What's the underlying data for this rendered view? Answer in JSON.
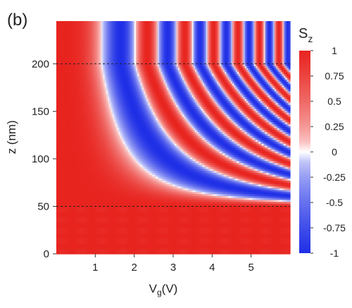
{
  "panel_label": "(b)",
  "colors": {
    "positive": "#e8241f",
    "zero": "#ffffff",
    "negative": "#1f2fe6"
  },
  "chart_data": {
    "type": "heatmap",
    "title": "",
    "xlabel": "V_g(V)",
    "ylabel": "z (nm)",
    "x_range": [
      0,
      6
    ],
    "y_range": [
      0,
      245
    ],
    "x_ticks": [
      1,
      2,
      3,
      4,
      5
    ],
    "y_ticks": [
      0,
      50,
      100,
      150,
      200
    ],
    "dashed_lines_z": [
      50,
      200
    ],
    "colorbar": {
      "label_main": "S",
      "label_sub": "z",
      "range": [
        -1,
        1
      ],
      "ticks": [
        "1",
        "0.75",
        "0.5",
        "0.25",
        "0",
        "-0.25",
        "-0.5",
        "-0.75",
        "-1"
      ],
      "tick_values": [
        1,
        0.75,
        0.5,
        0.25,
        0,
        -0.25,
        -0.5,
        -0.75,
        -1
      ]
    },
    "field": {
      "description": "Sz = cos(phase); spin precession in channel region 50-200 nm, uniform stripes above 200 nm, faint modulation below 50 nm",
      "phase_coefficient": 0.0077,
      "phase_exponent": 2,
      "channel_bottom_z": 50,
      "channel_top_z": 200,
      "substrate_modulation_period_z": 11,
      "substrate_modulation_amplitude": 0.06
    }
  }
}
